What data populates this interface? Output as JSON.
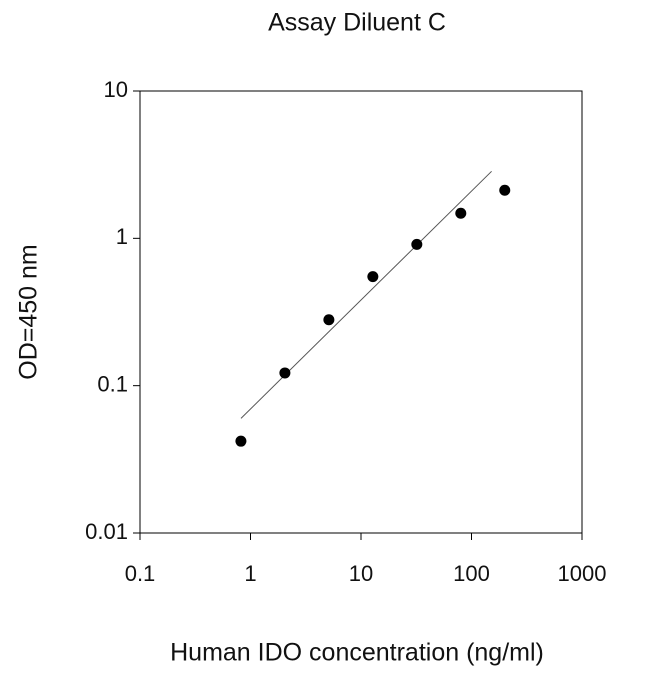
{
  "chart_data": {
    "type": "scatter",
    "title": "Assay Diluent C",
    "x_label": "Human IDO concentration (ng/ml)",
    "y_label": "OD=450 nm",
    "x": [
      0.819,
      2.048,
      5.12,
      12.8,
      32,
      80,
      200
    ],
    "values": [
      0.042,
      0.122,
      0.28,
      0.55,
      0.91,
      1.48,
      2.12
    ],
    "color": "#000000",
    "fit_line": {
      "x": [
        0.82,
        152
      ],
      "values": [
        0.06,
        2.85
      ],
      "color": "#555555"
    },
    "xlim": [
      0.1,
      1000
    ],
    "ylim": [
      0.01,
      10
    ],
    "xticks": [
      0.1,
      1,
      10,
      100,
      1000
    ],
    "yticks": [
      0.01,
      0.1,
      1,
      10
    ],
    "xscale": "log",
    "yscale": "log"
  }
}
